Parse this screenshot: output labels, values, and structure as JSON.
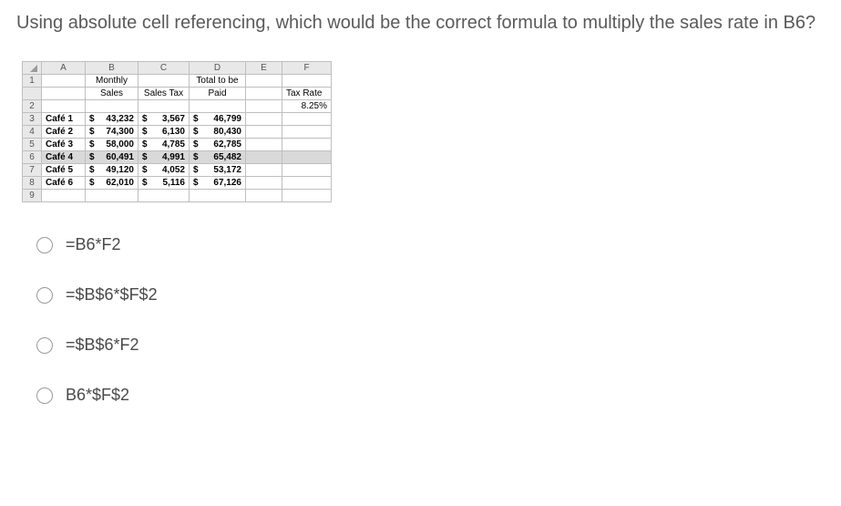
{
  "question": "Using absolute cell referencing, which would be the correct formula to multiply the sales rate in B6?",
  "columns": [
    "A",
    "B",
    "C",
    "D",
    "E",
    "F"
  ],
  "header_row1": {
    "B": "Monthly",
    "D": "Total to be"
  },
  "header_row2": {
    "B": "Sales",
    "C": "Sales Tax",
    "D": "Paid",
    "F": "Tax Rate"
  },
  "tax_rate": "8.25%",
  "rows": [
    {
      "n": "3",
      "A": "Café 1",
      "B": "43,232",
      "C": "3,567",
      "D": "46,799"
    },
    {
      "n": "4",
      "A": "Café 2",
      "B": "74,300",
      "C": "6,130",
      "D": "80,430"
    },
    {
      "n": "5",
      "A": "Café 3",
      "B": "58,000",
      "C": "4,785",
      "D": "62,785"
    },
    {
      "n": "6",
      "A": "Café 4",
      "B": "60,491",
      "C": "4,991",
      "D": "65,482",
      "hl": true
    },
    {
      "n": "7",
      "A": "Café 5",
      "B": "49,120",
      "C": "4,052",
      "D": "53,172"
    },
    {
      "n": "8",
      "A": "Café 6",
      "B": "62,010",
      "C": "5,116",
      "D": "67,126"
    }
  ],
  "options": [
    "=B6*F2",
    "=$B$6*$F$2",
    "=$B$6*F2",
    "B6*$F$2"
  ]
}
